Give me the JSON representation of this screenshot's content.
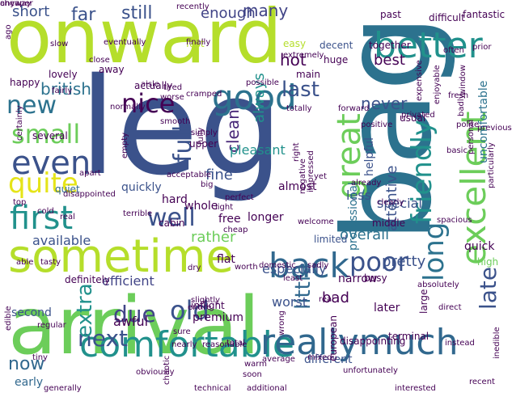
{
  "words": [
    {
      "text": "arrival",
      "color": "#6ccd5a"
    },
    {
      "text": "leg",
      "color": "#3b528b"
    },
    {
      "text": "bag",
      "color": "#2c728e"
    },
    {
      "text": "onward",
      "color": "#b5de2b"
    },
    {
      "text": "sometime",
      "color": "#b5de2b"
    },
    {
      "text": "comfortable",
      "color": "#21918c"
    },
    {
      "text": "reallymuch",
      "color": "#31688e"
    },
    {
      "text": "excellent",
      "color": "#6ccd5a"
    },
    {
      "text": "good",
      "color": "#2c728e"
    },
    {
      "text": "better",
      "color": "#21918c"
    },
    {
      "text": "great",
      "color": "#6ccd5a"
    },
    {
      "text": "first",
      "color": "#21918c"
    },
    {
      "text": "even",
      "color": "#3b528b"
    },
    {
      "text": "friendly",
      "color": "#21918c"
    },
    {
      "text": "back",
      "color": "#31688e"
    },
    {
      "text": "nice",
      "color": "#440154"
    },
    {
      "text": "quite",
      "color": "#e5e419"
    },
    {
      "text": "small",
      "color": "#6ccd5a"
    },
    {
      "text": "new",
      "color": "#2c728e"
    },
    {
      "text": "well",
      "color": "#3b528b"
    },
    {
      "text": "last",
      "color": "#3b528b"
    },
    {
      "text": "poor",
      "color": "#3b528b"
    },
    {
      "text": "old",
      "color": "#3b528b"
    },
    {
      "text": "due",
      "color": "#414487"
    },
    {
      "text": "next",
      "color": "#3b528b"
    },
    {
      "text": "late",
      "color": "#3b528b"
    },
    {
      "text": "long",
      "color": "#2c728e"
    },
    {
      "text": "little",
      "color": "#31688e"
    },
    {
      "text": "extra",
      "color": "#21918c"
    },
    {
      "text": "full",
      "color": "#3b528b"
    },
    {
      "text": "still",
      "color": "#3b528b"
    },
    {
      "text": "far",
      "color": "#3b528b"
    },
    {
      "text": "short",
      "color": "#3b528b"
    },
    {
      "text": "many",
      "color": "#414487"
    },
    {
      "text": "enough",
      "color": "#414487"
    },
    {
      "text": "best",
      "color": "#440154"
    },
    {
      "text": "hot",
      "color": "#440154"
    },
    {
      "text": "never",
      "color": "#3b528b"
    },
    {
      "text": "always",
      "color": "#21918c"
    },
    {
      "text": "clean",
      "color": "#482878"
    },
    {
      "text": "british",
      "color": "#2c728e"
    },
    {
      "text": "rather",
      "color": "#6ccd5a"
    },
    {
      "text": "fine",
      "color": "#3b528b"
    },
    {
      "text": "pleasant",
      "color": "#21918c"
    },
    {
      "text": "less",
      "color": "#3b528b"
    },
    {
      "text": "attentive",
      "color": "#3b528b"
    },
    {
      "text": "pretty",
      "color": "#3b528b"
    },
    {
      "text": "available",
      "color": "#3b528b"
    },
    {
      "text": "efficient",
      "color": "#414487"
    },
    {
      "text": "now",
      "color": "#31688e"
    },
    {
      "text": "overall",
      "color": "#2c728e"
    },
    {
      "text": "especially",
      "color": "#3b528b"
    },
    {
      "text": "bad",
      "color": "#440154"
    },
    {
      "text": "worst",
      "color": "#3b528b"
    },
    {
      "text": "quickly",
      "color": "#3b528b"
    },
    {
      "text": "professional",
      "color": "#2c728e"
    },
    {
      "text": "uncomfortable",
      "color": "#2c728e"
    },
    {
      "text": "helpful",
      "color": "#3b528b"
    },
    {
      "text": "special",
      "color": "#3b528b"
    },
    {
      "text": "hard",
      "color": "#440154"
    },
    {
      "text": "whole",
      "color": "#440154"
    },
    {
      "text": "free",
      "color": "#440154"
    },
    {
      "text": "longer",
      "color": "#440154"
    },
    {
      "text": "almost",
      "color": "#440154"
    },
    {
      "text": "quick",
      "color": "#440154"
    },
    {
      "text": "high",
      "color": "#6ccd5a"
    },
    {
      "text": "limited",
      "color": "#3b528b"
    },
    {
      "text": "narrow",
      "color": "#440154"
    },
    {
      "text": "busy",
      "color": "#440154"
    },
    {
      "text": "flat",
      "color": "#440154"
    },
    {
      "text": "awful",
      "color": "#440154"
    },
    {
      "text": "premium",
      "color": "#440154"
    },
    {
      "text": "inflight",
      "color": "#440154"
    },
    {
      "text": "upper",
      "color": "#440154"
    },
    {
      "text": "later",
      "color": "#440154"
    },
    {
      "text": "second",
      "color": "#3b528b"
    },
    {
      "text": "early",
      "color": "#31688e"
    },
    {
      "text": "different",
      "color": "#3b528b"
    },
    {
      "text": "several",
      "color": "#440154"
    },
    {
      "text": "quiet",
      "color": "#31688e"
    },
    {
      "text": "cabin",
      "color": "#440154"
    },
    {
      "text": "middle",
      "color": "#440154"
    },
    {
      "text": "definitely",
      "color": "#440154"
    },
    {
      "text": "actually",
      "color": "#440154"
    },
    {
      "text": "happy",
      "color": "#440154"
    },
    {
      "text": "fast",
      "color": "#b5de2b"
    },
    {
      "text": "decent",
      "color": "#3b528b"
    },
    {
      "text": "easy",
      "color": "#b5de2b"
    },
    {
      "text": "main",
      "color": "#440154"
    },
    {
      "text": "away",
      "color": "#440154"
    },
    {
      "text": "lovely",
      "color": "#440154"
    },
    {
      "text": "together",
      "color": "#440154"
    },
    {
      "text": "usual",
      "color": "#440154"
    },
    {
      "text": "fantastic",
      "color": "#440154"
    },
    {
      "text": "difficult",
      "color": "#440154"
    },
    {
      "text": "past",
      "color": "#440154"
    },
    {
      "text": "recently",
      "color": "#440154"
    },
    {
      "text": "finally",
      "color": "#440154"
    },
    {
      "text": "close",
      "color": "#440154"
    },
    {
      "text": "worse",
      "color": "#440154"
    },
    {
      "text": "huge",
      "color": "#440154"
    },
    {
      "text": "eventually",
      "color": "#440154"
    },
    {
      "text": "slow",
      "color": "#440154"
    },
    {
      "text": "fairly",
      "color": "#440154"
    },
    {
      "text": "tired",
      "color": "#440154"
    },
    {
      "text": "aisle",
      "color": "#440154"
    },
    {
      "text": "cramped",
      "color": "#440154"
    },
    {
      "text": "possible",
      "color": "#440154"
    },
    {
      "text": "totally",
      "color": "#440154"
    },
    {
      "text": "forward",
      "color": "#440154"
    },
    {
      "text": "basic",
      "color": "#440154"
    },
    {
      "text": "polite",
      "color": "#440154"
    },
    {
      "text": "fresh",
      "color": "#440154"
    },
    {
      "text": "window",
      "color": "#440154"
    },
    {
      "text": "already",
      "color": "#440154"
    },
    {
      "text": "clearly",
      "color": "#440154"
    },
    {
      "text": "right",
      "color": "#440154"
    },
    {
      "text": "simply",
      "color": "#440154"
    },
    {
      "text": "smooth",
      "color": "#440154"
    },
    {
      "text": "empty",
      "color": "#440154"
    },
    {
      "text": "extremely",
      "color": "#440154"
    },
    {
      "text": "positive",
      "color": "#440154"
    },
    {
      "text": "privated",
      "color": "#440154"
    },
    {
      "text": "disappointed",
      "color": "#440154"
    },
    {
      "text": "apart",
      "color": "#440154"
    },
    {
      "text": "big",
      "color": "#440154"
    },
    {
      "text": "cold",
      "color": "#440154"
    },
    {
      "text": "cheap",
      "color": "#440154"
    },
    {
      "text": "terrible",
      "color": "#440154"
    },
    {
      "text": "tasty",
      "color": "#440154"
    },
    {
      "text": "able",
      "color": "#440154"
    },
    {
      "text": "dry",
      "color": "#440154"
    },
    {
      "text": "worth",
      "color": "#440154"
    },
    {
      "text": "least",
      "color": "#440154"
    },
    {
      "text": "slightly",
      "color": "#440154"
    },
    {
      "text": "entire",
      "color": "#440154"
    },
    {
      "text": "real",
      "color": "#440154"
    },
    {
      "text": "wrong",
      "color": "#440154"
    },
    {
      "text": "european",
      "color": "#440154"
    },
    {
      "text": "disappointing",
      "color": "#440154"
    },
    {
      "text": "terminal",
      "color": "#440154"
    },
    {
      "text": "direct",
      "color": "#440154"
    },
    {
      "text": "large",
      "color": "#440154"
    },
    {
      "text": "absolutely",
      "color": "#440154"
    },
    {
      "text": "regular",
      "color": "#440154"
    },
    {
      "text": "nearly",
      "color": "#440154"
    },
    {
      "text": "tiny",
      "color": "#440154"
    },
    {
      "text": "reasonable",
      "color": "#440154"
    },
    {
      "text": "average",
      "color": "#440154"
    },
    {
      "text": "mixed",
      "color": "#440154"
    },
    {
      "text": "instead",
      "color": "#440154"
    },
    {
      "text": "inedible",
      "color": "#440154"
    },
    {
      "text": "generally",
      "color": "#440154"
    },
    {
      "text": "technical",
      "color": "#440154"
    },
    {
      "text": "additional",
      "color": "#440154"
    },
    {
      "text": "interested",
      "color": "#440154"
    },
    {
      "text": "recent",
      "color": "#440154"
    },
    {
      "text": "chaotic",
      "color": "#440154"
    },
    {
      "text": "warm",
      "color": "#440154"
    },
    {
      "text": "soon",
      "color": "#440154"
    },
    {
      "text": "top",
      "color": "#440154"
    },
    {
      "text": "acceptable",
      "color": "#440154"
    },
    {
      "text": "perfect",
      "color": "#440154"
    },
    {
      "text": "light",
      "color": "#440154"
    },
    {
      "text": "welcome",
      "color": "#440154"
    },
    {
      "text": "prior",
      "color": "#440154"
    },
    {
      "text": "often",
      "color": "#440154"
    },
    {
      "text": "expensive",
      "color": "#440154"
    },
    {
      "text": "enjoyable",
      "color": "#440154"
    },
    {
      "text": "badly",
      "color": "#440154"
    },
    {
      "text": "personal",
      "color": "#440154"
    },
    {
      "text": "particularly",
      "color": "#440154"
    },
    {
      "text": "previous",
      "color": "#440154"
    },
    {
      "text": "ago",
      "color": "#440154"
    },
    {
      "text": "normally",
      "color": "#440154"
    },
    {
      "text": "real",
      "color": "#440154"
    },
    {
      "text": "certainly",
      "color": "#440154"
    },
    {
      "text": "fully",
      "color": "#440154"
    },
    {
      "text": "negative",
      "color": "#440154"
    },
    {
      "text": "spacious",
      "color": "#440154"
    },
    {
      "text": "domestic",
      "color": "#440154"
    },
    {
      "text": "sadly",
      "color": "#440154"
    },
    {
      "text": "sure",
      "color": "#440154"
    },
    {
      "text": "obviously",
      "color": "#440154"
    },
    {
      "text": "total",
      "color": "#440154"
    },
    {
      "text": "unfortunately",
      "color": "#440154"
    },
    {
      "text": "impressed",
      "color": "#440154"
    },
    {
      "text": "yet",
      "color": "#440154"
    },
    {
      "text": "edible",
      "color": "#440154"
    },
    {
      "text": "anyway",
      "color": "#440154"
    },
    {
      "text": "cheaper",
      "color": "#440154"
    }
  ]
}
